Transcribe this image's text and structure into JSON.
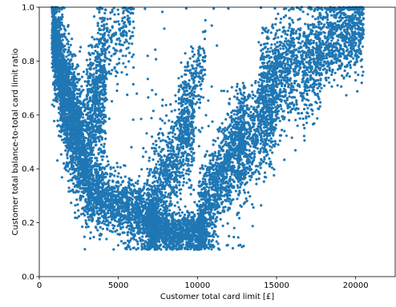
{
  "chart_data": {
    "type": "scatter",
    "title": "",
    "xlabel": "Customer total card limit [£]",
    "ylabel": "Customer total balance-to-total card limit ratio",
    "xlim": [
      0,
      22500
    ],
    "ylim": [
      0.0,
      1.0
    ],
    "xticks": [
      0,
      5000,
      10000,
      15000,
      20000
    ],
    "xtick_labels": [
      "0",
      "5000",
      "10000",
      "15000",
      "20000"
    ],
    "yticks": [
      0.0,
      0.2,
      0.4,
      0.6,
      0.8,
      1.0
    ],
    "ytick_labels": [
      "0.0",
      "0.2",
      "0.4",
      "0.6",
      "0.8",
      "1.0"
    ],
    "grid": false,
    "legend": "none",
    "marker_color": "#1f77b4",
    "approx_point_count": 10000,
    "density_bands": [
      {
        "x": [
          800,
          1800
        ],
        "y_center_start": 0.92,
        "y_center_end": 0.62,
        "spread": 0.1,
        "weight": 1100
      },
      {
        "x": [
          1800,
          3000
        ],
        "y_center_start": 0.65,
        "y_center_end": 0.4,
        "spread": 0.12,
        "weight": 1100
      },
      {
        "x": [
          3000,
          4200
        ],
        "y_center_start": 0.55,
        "y_center_end": 0.75,
        "spread": 0.14,
        "weight": 700
      },
      {
        "x": [
          3800,
          6000
        ],
        "y_center_start": 0.8,
        "y_center_end": 0.95,
        "spread": 0.08,
        "weight": 200
      },
      {
        "x": [
          3000,
          7500
        ],
        "y_center_start": 0.32,
        "y_center_end": 0.2,
        "spread": 0.06,
        "weight": 1400
      },
      {
        "x": [
          7000,
          10500
        ],
        "y_center_start": 0.17,
        "y_center_end": 0.16,
        "spread": 0.035,
        "weight": 1000
      },
      {
        "x": [
          6800,
          9800
        ],
        "y_center_start": 0.2,
        "y_center_end": 0.6,
        "spread": 0.1,
        "weight": 900
      },
      {
        "x": [
          8800,
          10500
        ],
        "y_center_start": 0.6,
        "y_center_end": 0.8,
        "spread": 0.08,
        "weight": 200
      },
      {
        "x": [
          10000,
          13000
        ],
        "y_center_start": 0.18,
        "y_center_end": 0.55,
        "spread": 0.09,
        "weight": 1100
      },
      {
        "x": [
          12500,
          15000
        ],
        "y_center_start": 0.45,
        "y_center_end": 0.65,
        "spread": 0.1,
        "weight": 700
      },
      {
        "x": [
          14000,
          17800
        ],
        "y_center_start": 0.72,
        "y_center_end": 0.82,
        "spread": 0.1,
        "weight": 1000
      },
      {
        "x": [
          17500,
          20500
        ],
        "y_center_start": 0.85,
        "y_center_end": 0.95,
        "spread": 0.08,
        "weight": 800
      },
      {
        "x": [
          5500,
          13500
        ],
        "y_center_start": 0.5,
        "y_center_end": 0.5,
        "spread": 0.3,
        "weight": 150
      }
    ]
  }
}
